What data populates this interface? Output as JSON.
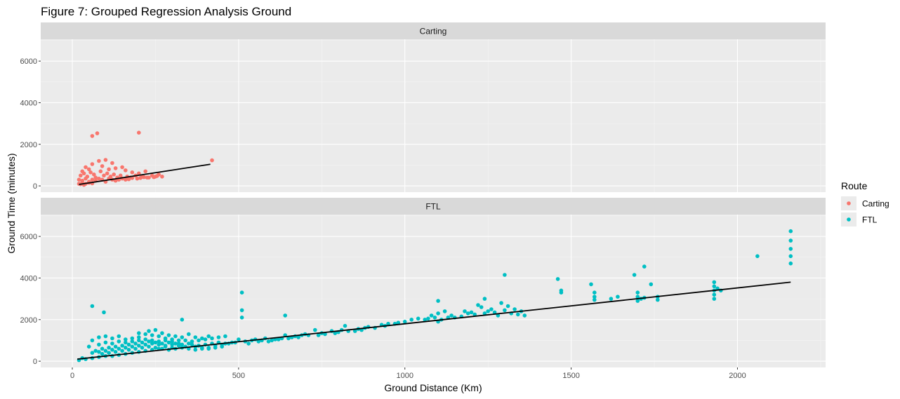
{
  "chart_data": {
    "type": "scatter",
    "title": "Figure 7: Grouped Regression Analysis Ground",
    "xlabel": "Ground Distance (Km)",
    "ylabel": "Ground Time (minutes)",
    "xlim": [
      -95,
      2265
    ],
    "ylim": [
      -300,
      7050
    ],
    "x_ticks": [
      0,
      500,
      1000,
      1500,
      2000
    ],
    "y_ticks": [
      0,
      2000,
      4000,
      6000
    ],
    "grid": true,
    "legend": {
      "title": "Route",
      "placement": "right",
      "entries": [
        {
          "label": "Carting",
          "color": "#F8766D"
        },
        {
          "label": "FTL",
          "color": "#00BFC4"
        }
      ]
    },
    "panels": [
      {
        "name": "Carting",
        "color": "#F8766D",
        "regression": {
          "x": [
            20,
            415
          ],
          "y": [
            70,
            1040
          ]
        },
        "points": [
          [
            60,
            2400
          ],
          [
            75,
            2530
          ],
          [
            200,
            2560
          ],
          [
            420,
            1230
          ],
          [
            100,
            1250
          ],
          [
            120,
            1100
          ],
          [
            80,
            1200
          ],
          [
            60,
            1050
          ],
          [
            150,
            900
          ],
          [
            220,
            700
          ],
          [
            260,
            550
          ],
          [
            270,
            450
          ],
          [
            40,
            900
          ],
          [
            30,
            700
          ],
          [
            50,
            800
          ],
          [
            90,
            950
          ],
          [
            110,
            800
          ],
          [
            130,
            850
          ],
          [
            160,
            750
          ],
          [
            180,
            650
          ],
          [
            200,
            600
          ],
          [
            240,
            500
          ],
          [
            25,
            500
          ],
          [
            35,
            600
          ],
          [
            45,
            450
          ],
          [
            55,
            650
          ],
          [
            65,
            550
          ],
          [
            70,
            400
          ],
          [
            85,
            700
          ],
          [
            95,
            500
          ],
          [
            105,
            600
          ],
          [
            115,
            450
          ],
          [
            125,
            550
          ],
          [
            135,
            400
          ],
          [
            145,
            500
          ],
          [
            165,
            450
          ],
          [
            175,
            400
          ],
          [
            190,
            500
          ],
          [
            210,
            450
          ],
          [
            230,
            400
          ],
          [
            250,
            450
          ],
          [
            20,
            300
          ],
          [
            30,
            250
          ],
          [
            40,
            350
          ],
          [
            50,
            200
          ],
          [
            60,
            300
          ],
          [
            70,
            250
          ],
          [
            80,
            350
          ],
          [
            90,
            300
          ],
          [
            100,
            200
          ],
          [
            110,
            350
          ],
          [
            120,
            300
          ],
          [
            130,
            250
          ],
          [
            140,
            300
          ],
          [
            150,
            350
          ],
          [
            160,
            300
          ],
          [
            170,
            320
          ],
          [
            180,
            380
          ],
          [
            195,
            350
          ],
          [
            205,
            380
          ],
          [
            215,
            420
          ],
          [
            225,
            400
          ],
          [
            245,
            420
          ],
          [
            255,
            480
          ],
          [
            30,
            150
          ],
          [
            40,
            100
          ],
          [
            50,
            150
          ],
          [
            60,
            120
          ],
          [
            25,
            80
          ],
          [
            35,
            50
          ],
          [
            20,
            100
          ]
        ]
      },
      {
        "name": "FTL",
        "color": "#00BFC4",
        "regression": {
          "x": [
            15,
            2160
          ],
          "y": [
            100,
            3800
          ]
        },
        "points": [
          [
            60,
            2650
          ],
          [
            95,
            2350
          ],
          [
            330,
            2000
          ],
          [
            510,
            3300
          ],
          [
            510,
            2450
          ],
          [
            640,
            2200
          ],
          [
            510,
            2100
          ],
          [
            1240,
            3000
          ],
          [
            1300,
            4150
          ],
          [
            1460,
            3950
          ],
          [
            1690,
            4150
          ],
          [
            1720,
            4550
          ],
          [
            1740,
            3700
          ],
          [
            1560,
            3700
          ],
          [
            1930,
            3800
          ],
          [
            2060,
            5050
          ],
          [
            2160,
            6250
          ],
          [
            2160,
            5800
          ],
          [
            2160,
            5400
          ],
          [
            2160,
            5050
          ],
          [
            2160,
            4700
          ],
          [
            1930,
            3600
          ],
          [
            1930,
            3400
          ],
          [
            1930,
            3200
          ],
          [
            1930,
            3000
          ],
          [
            1940,
            3500
          ],
          [
            1950,
            3400
          ],
          [
            1700,
            3300
          ],
          [
            1700,
            3100
          ],
          [
            1700,
            2900
          ],
          [
            1710,
            3000
          ],
          [
            1720,
            3050
          ],
          [
            1760,
            3100
          ],
          [
            1760,
            2950
          ],
          [
            1640,
            3100
          ],
          [
            1620,
            3000
          ],
          [
            1570,
            3300
          ],
          [
            1570,
            3100
          ],
          [
            1570,
            2950
          ],
          [
            1470,
            3400
          ],
          [
            1470,
            3300
          ],
          [
            1360,
            2200
          ],
          [
            1330,
            2500
          ],
          [
            1320,
            2300
          ],
          [
            1310,
            2650
          ],
          [
            1300,
            2450
          ],
          [
            1290,
            2800
          ],
          [
            1280,
            2200
          ],
          [
            1260,
            2500
          ],
          [
            1240,
            2300
          ],
          [
            1230,
            2600
          ],
          [
            1220,
            2700
          ],
          [
            1200,
            2350
          ],
          [
            1180,
            2400
          ],
          [
            1130,
            2100
          ],
          [
            1120,
            2400
          ],
          [
            1100,
            2900
          ],
          [
            1100,
            2300
          ],
          [
            1100,
            1900
          ],
          [
            1090,
            2100
          ],
          [
            1060,
            2000
          ],
          [
            1040,
            2050
          ],
          [
            1020,
            2000
          ],
          [
            970,
            1800
          ],
          [
            940,
            1700
          ],
          [
            880,
            1600
          ],
          [
            870,
            1500
          ],
          [
            850,
            1450
          ],
          [
            820,
            1700
          ],
          [
            800,
            1400
          ],
          [
            750,
            1350
          ],
          [
            740,
            1250
          ],
          [
            730,
            1500
          ],
          [
            700,
            1300
          ],
          [
            680,
            1150
          ],
          [
            660,
            1150
          ],
          [
            640,
            1250
          ],
          [
            620,
            1050
          ],
          [
            600,
            1000
          ],
          [
            580,
            1100
          ],
          [
            560,
            950
          ],
          [
            540,
            1000
          ],
          [
            520,
            950
          ],
          [
            500,
            1050
          ],
          [
            480,
            900
          ],
          [
            460,
            850
          ],
          [
            440,
            900
          ],
          [
            420,
            850
          ],
          [
            400,
            800
          ],
          [
            380,
            750
          ],
          [
            360,
            800
          ],
          [
            340,
            700
          ],
          [
            320,
            750
          ],
          [
            300,
            650
          ],
          [
            280,
            700
          ],
          [
            260,
            600
          ],
          [
            240,
            550
          ],
          [
            220,
            500
          ],
          [
            200,
            450
          ],
          [
            180,
            400
          ],
          [
            160,
            350
          ],
          [
            140,
            300
          ],
          [
            120,
            250
          ],
          [
            100,
            250
          ],
          [
            80,
            200
          ],
          [
            60,
            150
          ],
          [
            40,
            100
          ],
          [
            30,
            150
          ],
          [
            20,
            50
          ],
          [
            50,
            700
          ],
          [
            60,
            1000
          ],
          [
            80,
            1150
          ],
          [
            100,
            1200
          ],
          [
            120,
            1100
          ],
          [
            140,
            1200
          ],
          [
            160,
            1050
          ],
          [
            180,
            1100
          ],
          [
            200,
            1150
          ],
          [
            220,
            1300
          ],
          [
            240,
            1250
          ],
          [
            260,
            1200
          ],
          [
            280,
            1100
          ],
          [
            300,
            1050
          ],
          [
            320,
            1000
          ],
          [
            340,
            1000
          ],
          [
            360,
            950
          ],
          [
            380,
            1000
          ],
          [
            400,
            1050
          ],
          [
            420,
            1100
          ],
          [
            440,
            1150
          ],
          [
            460,
            1200
          ],
          [
            200,
            1350
          ],
          [
            230,
            1450
          ],
          [
            250,
            1500
          ],
          [
            270,
            1350
          ],
          [
            290,
            1250
          ],
          [
            310,
            1200
          ],
          [
            330,
            1150
          ],
          [
            350,
            1300
          ],
          [
            370,
            1150
          ],
          [
            390,
            1100
          ],
          [
            410,
            1200
          ],
          [
            70,
            500
          ],
          [
            90,
            600
          ],
          [
            110,
            650
          ],
          [
            130,
            700
          ],
          [
            150,
            750
          ],
          [
            170,
            800
          ],
          [
            190,
            850
          ],
          [
            210,
            900
          ],
          [
            230,
            950
          ],
          [
            250,
            900
          ],
          [
            270,
            850
          ],
          [
            290,
            900
          ],
          [
            310,
            850
          ],
          [
            330,
            800
          ],
          [
            350,
            850
          ],
          [
            370,
            700
          ],
          [
            390,
            650
          ],
          [
            410,
            600
          ],
          [
            430,
            650
          ],
          [
            450,
            700
          ],
          [
            80,
            800
          ],
          [
            100,
            900
          ],
          [
            120,
            850
          ],
          [
            140,
            950
          ],
          [
            160,
            900
          ],
          [
            180,
            950
          ],
          [
            200,
            1000
          ],
          [
            220,
            1050
          ],
          [
            240,
            1000
          ],
          [
            260,
            950
          ],
          [
            280,
            1000
          ],
          [
            300,
            950
          ],
          [
            60,
            400
          ],
          [
            80,
            450
          ],
          [
            100,
            500
          ],
          [
            120,
            550
          ],
          [
            140,
            600
          ],
          [
            160,
            650
          ],
          [
            180,
            700
          ],
          [
            200,
            750
          ],
          [
            220,
            800
          ],
          [
            240,
            850
          ],
          [
            260,
            800
          ],
          [
            280,
            750
          ],
          [
            300,
            800
          ],
          [
            320,
            850
          ],
          [
            90,
            350
          ],
          [
            110,
            400
          ],
          [
            130,
            450
          ],
          [
            150,
            500
          ],
          [
            170,
            550
          ],
          [
            190,
            600
          ],
          [
            210,
            650
          ],
          [
            230,
            700
          ],
          [
            250,
            650
          ],
          [
            270,
            600
          ],
          [
            290,
            550
          ],
          [
            310,
            600
          ],
          [
            330,
            650
          ],
          [
            350,
            600
          ],
          [
            370,
            550
          ],
          [
            390,
            600
          ],
          [
            410,
            650
          ],
          [
            430,
            750
          ],
          [
            450,
            800
          ],
          [
            470,
            850
          ],
          [
            490,
            900
          ],
          [
            530,
            850
          ],
          [
            550,
            1050
          ],
          [
            570,
            1000
          ],
          [
            590,
            950
          ],
          [
            610,
            1050
          ],
          [
            630,
            1100
          ],
          [
            650,
            1100
          ],
          [
            670,
            1200
          ],
          [
            690,
            1250
          ],
          [
            710,
            1250
          ],
          [
            760,
            1300
          ],
          [
            780,
            1450
          ],
          [
            790,
            1350
          ],
          [
            810,
            1500
          ],
          [
            830,
            1450
          ],
          [
            860,
            1550
          ],
          [
            890,
            1650
          ],
          [
            910,
            1600
          ],
          [
            930,
            1750
          ],
          [
            950,
            1800
          ],
          [
            980,
            1850
          ],
          [
            1000,
            1900
          ],
          [
            1070,
            2050
          ],
          [
            1080,
            2200
          ],
          [
            1110,
            2000
          ],
          [
            1140,
            2200
          ],
          [
            1150,
            2100
          ],
          [
            1170,
            2150
          ],
          [
            1190,
            2300
          ],
          [
            1210,
            2250
          ],
          [
            1250,
            2400
          ],
          [
            1270,
            2350
          ],
          [
            1340,
            2250
          ],
          [
            1350,
            2400
          ]
        ]
      }
    ]
  }
}
